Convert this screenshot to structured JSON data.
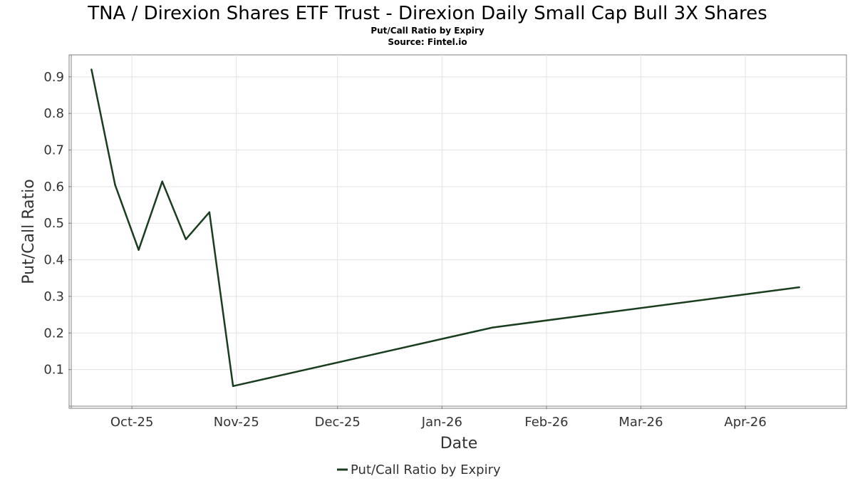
{
  "chart_data": {
    "type": "line",
    "title": "TNA / Direxion Shares ETF Trust - Direxion Daily Small Cap Bull 3X Shares",
    "subtitle": "Put/Call Ratio by Expiry",
    "source": "Source: Fintel.io",
    "xlabel": "Date",
    "ylabel": "Put/Call Ratio",
    "x_range": [
      "2025-09-13",
      "2026-05-01"
    ],
    "ylim": [
      0.0,
      0.96
    ],
    "yticks": [
      0.1,
      0.2,
      0.3,
      0.4,
      0.5,
      0.6,
      0.7,
      0.8,
      0.9
    ],
    "ytick_labels": [
      "0.1",
      "0.2",
      "0.3",
      "0.4",
      "0.5",
      "0.6",
      "0.7",
      "0.8",
      "0.9"
    ],
    "xticks": [
      "2025-10-01",
      "2025-11-01",
      "2025-12-01",
      "2026-01-01",
      "2026-02-01",
      "2026-03-01",
      "2026-04-01"
    ],
    "xtick_labels": [
      "Oct-25",
      "Nov-25",
      "Dec-25",
      "Jan-26",
      "Feb-26",
      "Mar-26",
      "Apr-26"
    ],
    "grid": true,
    "legend_position": "bottom-center",
    "series": [
      {
        "name": "Put/Call Ratio by Expiry",
        "color": "#1a3d1f",
        "points": [
          {
            "x": "2025-09-19",
            "y": 0.92
          },
          {
            "x": "2025-09-26",
            "y": 0.605
          },
          {
            "x": "2025-10-03",
            "y": 0.427
          },
          {
            "x": "2025-10-10",
            "y": 0.614
          },
          {
            "x": "2025-10-17",
            "y": 0.456
          },
          {
            "x": "2025-10-24",
            "y": 0.53
          },
          {
            "x": "2025-10-31",
            "y": 0.055
          },
          {
            "x": "2026-01-16",
            "y": 0.215
          },
          {
            "x": "2026-04-17",
            "y": 0.325
          }
        ]
      }
    ]
  }
}
